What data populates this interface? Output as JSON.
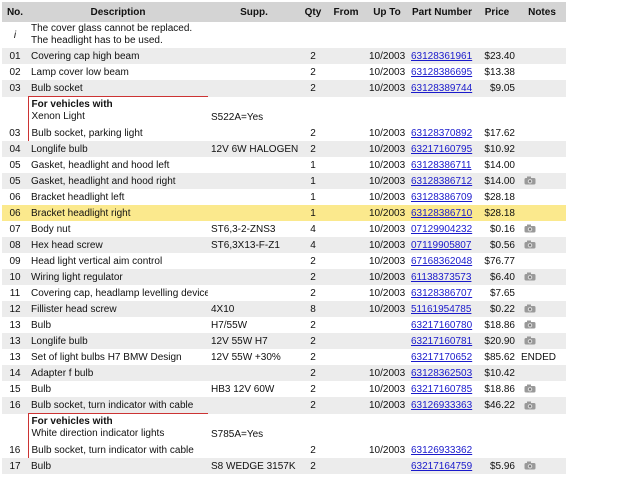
{
  "table": {
    "columns": [
      "No.",
      "Description",
      "Supp.",
      "Qty",
      "From",
      "Up To",
      "Part Number",
      "Price",
      "Notes"
    ],
    "rows": [
      {
        "no": "i",
        "description": "The cover glass cannot be replaced. The headlight has to be used."
      },
      {
        "no": "01",
        "description": "Covering cap high beam",
        "qty": 2,
        "up_to": "10/2003",
        "part_number": "63128361961",
        "price": "$23.40"
      },
      {
        "no": "02",
        "description": "Lamp cover low beam",
        "qty": 2,
        "up_to": "10/2003",
        "part_number": "63128386695",
        "price": "$13.38"
      },
      {
        "no": "03",
        "description": "Bulb socket",
        "qty": 2,
        "up_to": "10/2003",
        "part_number": "63128389744",
        "price": "$9.05"
      },
      {
        "group": [
          "For vehicles with",
          "Xenon Light"
        ],
        "supp": "S522A=Yes"
      },
      {
        "no": "03",
        "description": "Bulb socket, parking light",
        "qty": 2,
        "up_to": "10/2003",
        "part_number": "63128370892",
        "price": "$17.62"
      },
      {
        "no": "04",
        "description": "Longlife bulb",
        "supp": "12V 6W HALOGEN",
        "qty": 2,
        "up_to": "10/2003",
        "part_number": "63217160795",
        "price": "$10.92"
      },
      {
        "no": "05",
        "description": "Gasket, headlight and hood left",
        "qty": 1,
        "up_to": "10/2003",
        "part_number": "63128386711",
        "price": "$14.00"
      },
      {
        "no": "05",
        "description": "Gasket, headlight and hood right",
        "qty": 1,
        "up_to": "10/2003",
        "part_number": "63128386712",
        "price": "$14.00",
        "photo": true
      },
      {
        "no": "06",
        "description": "Bracket headlight left",
        "qty": 1,
        "up_to": "10/2003",
        "part_number": "63128386709",
        "price": "$28.18"
      },
      {
        "no": "06",
        "description": "Bracket headlight right",
        "qty": 1,
        "up_to": "10/2003",
        "part_number": "63128386710",
        "price": "$28.18",
        "highlight": true
      },
      {
        "no": "07",
        "description": "Body nut",
        "supp": "ST6,3-2-ZNS3",
        "qty": 4,
        "up_to": "10/2003",
        "part_number": "07129904232",
        "price": "$0.16",
        "photo": true
      },
      {
        "no": "08",
        "description": "Hex head screw",
        "supp": "ST6,3X13-F-Z1",
        "qty": 4,
        "up_to": "10/2003",
        "part_number": "07119905807",
        "price": "$0.56",
        "photo": true
      },
      {
        "no": "09",
        "description": "Head light vertical aim control",
        "qty": 2,
        "up_to": "10/2003",
        "part_number": "67168362048",
        "price": "$76.77"
      },
      {
        "no": "10",
        "description": "Wiring light regulator",
        "qty": 2,
        "up_to": "10/2003",
        "part_number": "61138373573",
        "price": "$6.40",
        "photo": true
      },
      {
        "no": "11",
        "description": "Covering cap, headlamp levelling device",
        "qty": 2,
        "up_to": "10/2003",
        "part_number": "63128386707",
        "price": "$7.65"
      },
      {
        "no": "12",
        "description": "Fillister head screw",
        "supp": "4X10",
        "qty": 8,
        "up_to": "10/2003",
        "part_number": "51161954785",
        "price": "$0.22",
        "photo": true
      },
      {
        "no": "13",
        "description": "Bulb",
        "supp": "H7/55W",
        "qty": 2,
        "part_number": "63217160780",
        "price": "$18.86",
        "photo": true
      },
      {
        "no": "13",
        "description": "Longlife bulb",
        "supp": "12V 55W H7",
        "qty": 2,
        "part_number": "63217160781",
        "price": "$20.90",
        "photo": true
      },
      {
        "no": "13",
        "description": "Set of light bulbs H7 BMW Design",
        "supp": "12V 55W +30%",
        "qty": 2,
        "part_number": "63217170652",
        "price": "$85.62",
        "notes": "ENDED"
      },
      {
        "no": "14",
        "description": "Adapter f bulb",
        "qty": 2,
        "up_to": "10/2003",
        "part_number": "63128362503",
        "price": "$10.42"
      },
      {
        "no": "15",
        "description": "Bulb",
        "supp": "HB3 12V 60W",
        "qty": 2,
        "up_to": "10/2003",
        "part_number": "63217160785",
        "price": "$18.86",
        "photo": true
      },
      {
        "no": "16",
        "description": "Bulb socket, turn indicator with cable",
        "qty": 2,
        "up_to": "10/2003",
        "part_number": "63126933363",
        "price": "$46.22",
        "photo": true
      },
      {
        "group": [
          "For vehicles with",
          "White direction indicator lights"
        ],
        "supp": "S785A=Yes"
      },
      {
        "no": "16",
        "description": "Bulb socket, turn indicator with cable",
        "qty": 2,
        "up_to": "10/2003",
        "part_number": "63126933362"
      },
      {
        "no": "17",
        "description": "Bulb",
        "supp": "S8 WEDGE 3157K",
        "qty": 2,
        "part_number": "63217164759",
        "price": "$5.96",
        "photo": true
      }
    ]
  }
}
